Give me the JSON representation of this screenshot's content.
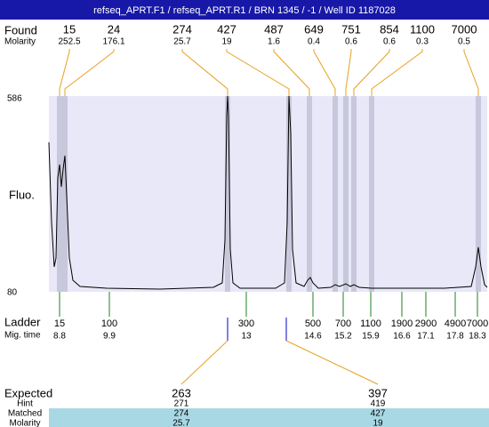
{
  "header": {
    "title": "refseq_APRT.F1 / refseq_APRT.R1 / BRN 1345 / -1 / Well ID 1187028"
  },
  "found": {
    "label": "Found",
    "molarity_label": "Molarity",
    "peaks": [
      {
        "size": 15,
        "molarity": 252.5
      },
      {
        "size": 24,
        "molarity": 176.1
      },
      {
        "size": 274,
        "molarity": 25.7
      },
      {
        "size": 427,
        "molarity": 19
      },
      {
        "size": 487,
        "molarity": 1.6
      },
      {
        "size": 649,
        "molarity": 0.4
      },
      {
        "size": 751,
        "molarity": 0.6
      },
      {
        "size": 854,
        "molarity": 0.6
      },
      {
        "size": 1100,
        "molarity": 0.3
      },
      {
        "size": 7000,
        "molarity": 0.5
      }
    ]
  },
  "plot": {
    "y_label": "Fluo.",
    "y_max": 586,
    "y_min": 80
  },
  "ladder": {
    "label": "Ladder",
    "mig_time_label": "Mig. time",
    "bands": [
      {
        "size": 15,
        "mig_time": 8.8
      },
      {
        "size": 100,
        "mig_time": 9.9
      },
      {
        "size": 300,
        "mig_time": 13
      },
      {
        "size": 500,
        "mig_time": 14.6
      },
      {
        "size": 700,
        "mig_time": 15.2
      },
      {
        "size": 1100,
        "mig_time": 15.9
      },
      {
        "size": 1900,
        "mig_time": 16.6
      },
      {
        "size": 2900,
        "mig_time": 17.1
      },
      {
        "size": 4900,
        "mig_time": 17.8
      },
      {
        "size": 7000,
        "mig_time": 18.3
      }
    ]
  },
  "expected": {
    "rows": [
      {
        "label": "Expected",
        "values": [
          263,
          397
        ]
      },
      {
        "label": "Hint",
        "values": [
          271,
          419
        ]
      },
      {
        "label": "Matched",
        "values": [
          274,
          427
        ]
      },
      {
        "label": "Molarity",
        "values": [
          25.7,
          19
        ]
      }
    ]
  }
}
